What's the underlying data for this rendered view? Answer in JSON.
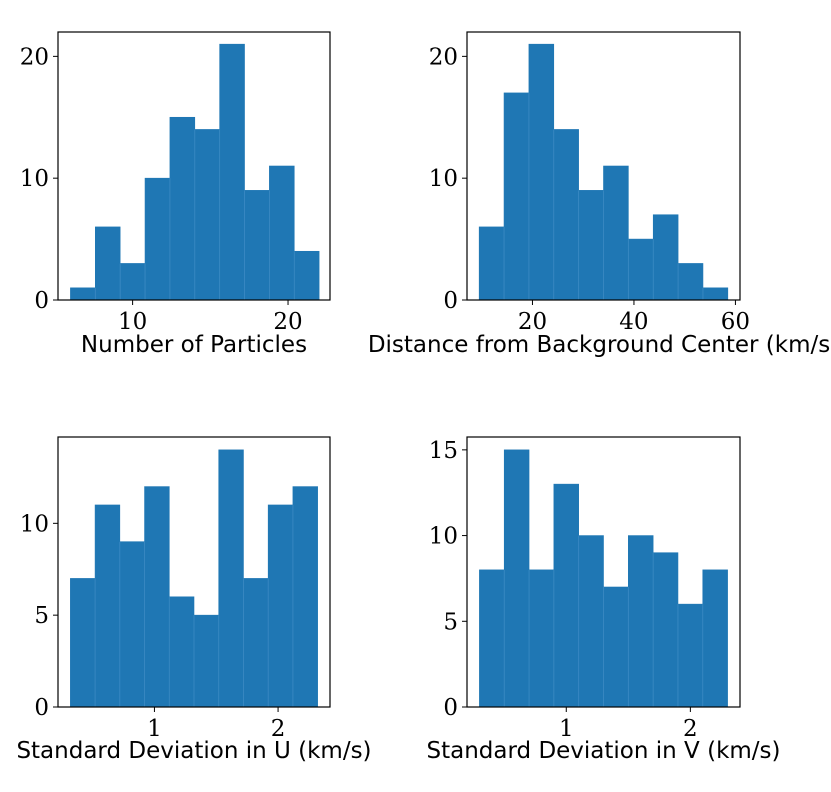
{
  "chart_data": [
    {
      "type": "bar",
      "subtype": "histogram",
      "xlabel": "Number of Particles",
      "ylabel": "",
      "bin_edges": [
        6.0,
        7.6,
        9.2,
        10.8,
        12.4,
        14.0,
        15.6,
        17.2,
        18.8,
        20.4,
        22.0
      ],
      "values": [
        1,
        6,
        3,
        10,
        15,
        14,
        21,
        9,
        11,
        4
      ],
      "xlim": [
        5.2,
        22.7
      ],
      "ylim": [
        0,
        22
      ],
      "xticks": [
        10,
        20
      ],
      "xtick_labels": [
        "10",
        "20"
      ],
      "yticks": [
        0,
        10,
        20
      ],
      "ytick_labels": [
        "0",
        "10",
        "20"
      ],
      "color": "#1f77b4"
    },
    {
      "type": "bar",
      "subtype": "histogram",
      "xlabel": "Distance from Background Center (km/s)",
      "ylabel": "",
      "bin_edges": [
        9.5,
        14.4,
        19.3,
        24.2,
        29.1,
        34.0,
        38.9,
        43.8,
        48.7,
        53.6,
        58.5
      ],
      "values": [
        6,
        17,
        21,
        14,
        9,
        11,
        5,
        7,
        3,
        1
      ],
      "xlim": [
        7.1,
        60.9
      ],
      "ylim": [
        0,
        22
      ],
      "xticks": [
        20,
        40,
        60
      ],
      "xtick_labels": [
        "20",
        "40",
        "60"
      ],
      "yticks": [
        0,
        10,
        20
      ],
      "ytick_labels": [
        "0",
        "10",
        "20"
      ],
      "color": "#1f77b4"
    },
    {
      "type": "bar",
      "subtype": "histogram",
      "xlabel": "Standard Deviation in U (km/s)",
      "ylabel": "",
      "bin_edges": [
        0.32,
        0.52,
        0.72,
        0.92,
        1.12,
        1.32,
        1.52,
        1.72,
        1.92,
        2.12,
        2.32
      ],
      "values": [
        7,
        11,
        9,
        12,
        6,
        5,
        14,
        7,
        11,
        12
      ],
      "xlim": [
        0.22,
        2.42
      ],
      "ylim": [
        0,
        14.7
      ],
      "xticks": [
        1,
        2
      ],
      "xtick_labels": [
        "1",
        "2"
      ],
      "yticks": [
        0,
        5,
        10
      ],
      "ytick_labels": [
        "0",
        "5",
        "10"
      ],
      "color": "#1f77b4"
    },
    {
      "type": "bar",
      "subtype": "histogram",
      "xlabel": "Standard Deviation in V (km/s)",
      "ylabel": "",
      "bin_edges": [
        0.3,
        0.5,
        0.7,
        0.9,
        1.1,
        1.3,
        1.5,
        1.7,
        1.9,
        2.1,
        2.3
      ],
      "values": [
        8,
        15,
        8,
        13,
        10,
        7,
        10,
        9,
        6,
        8
      ],
      "xlim": [
        0.2,
        2.4
      ],
      "ylim": [
        0,
        15.75
      ],
      "xticks": [
        1,
        2
      ],
      "xtick_labels": [
        "1",
        "2"
      ],
      "yticks": [
        0,
        5,
        10,
        15
      ],
      "ytick_labels": [
        "0",
        "5",
        "10",
        "15"
      ],
      "color": "#1f77b4"
    }
  ]
}
